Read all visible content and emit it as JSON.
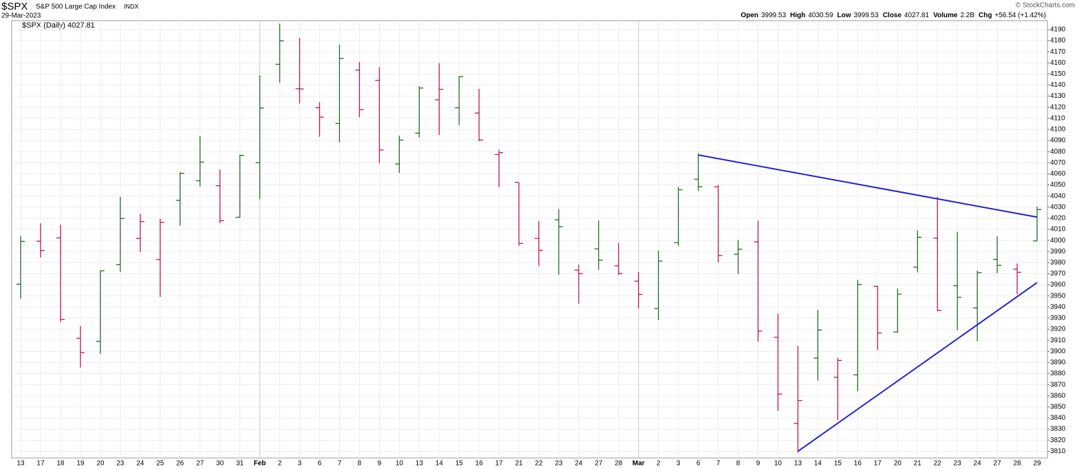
{
  "chart_data": {
    "type": "ohlc",
    "symbol": "$SPX",
    "name": "S&P 500 Large Cap Index",
    "exchange": "INDX",
    "date": "29-Mar-2023",
    "source": "© StockCharts.com",
    "legend": "$SPX (Daily) 4027.81",
    "header_stats": [
      {
        "label": "Open",
        "value": "3999.53"
      },
      {
        "label": "High",
        "value": "4030.59"
      },
      {
        "label": "Low",
        "value": "3999.53"
      },
      {
        "label": "Close",
        "value": "4027.81"
      },
      {
        "label": "Volume",
        "value": "2.2B"
      },
      {
        "label": "Chg",
        "value": "+56.54 (+1.42%)"
      }
    ],
    "categories": [
      "13",
      "17",
      "18",
      "19",
      "20",
      "23",
      "24",
      "25",
      "26",
      "27",
      "30",
      "31",
      "Feb",
      "2",
      "3",
      "6",
      "7",
      "8",
      "9",
      "10",
      "13",
      "14",
      "15",
      "16",
      "17",
      "21",
      "22",
      "23",
      "24",
      "27",
      "28",
      "Mar",
      "2",
      "3",
      "6",
      "7",
      "8",
      "9",
      "10",
      "13",
      "14",
      "15",
      "16",
      "17",
      "20",
      "21",
      "22",
      "23",
      "24",
      "27",
      "28",
      "29"
    ],
    "open": [
      3960.6,
      3999.28,
      4002.25,
      3911.84,
      3909.04,
      3978.14,
      4001.74,
      3982.71,
      4036.08,
      4053.72,
      4049.27,
      4020.85,
      4070.07,
      4158.68,
      4136.69,
      4119.57,
      4105.35,
      4153.47,
      4144.25,
      4068.92,
      4096.62,
      4126.7,
      4119.5,
      4114.75,
      4077.39,
      4052.35,
      4001.83,
      4018.6,
      3973.24,
      3992.36,
      3977.19,
      3963.34,
      3938.68,
      3998.02,
      4055.15,
      4048.26,
      3987.55,
      3998.66,
      3912.77,
      3835.12,
      3894.01,
      3876.74,
      3878.93,
      3958.69,
      3917.47,
      3975.89,
      4002.04,
      3959.21,
      3939.21,
      3982.93,
      3974.13,
      3999.53
    ],
    "high": [
      4003.95,
      4015.39,
      4014.16,
      3922.94,
      3972.96,
      4039.31,
      4023.92,
      4019.55,
      4061.57,
      4094.21,
      4063.85,
      4077.16,
      4148.95,
      4195.44,
      4182.36,
      4124.63,
      4176.54,
      4160.77,
      4156.23,
      4094.36,
      4138.9,
      4159.77,
      4148.11,
      4136.54,
      4081.51,
      4052.35,
      4017.37,
      4028.3,
      3978.25,
      4018.05,
      3997.5,
      3971.73,
      3990.84,
      4048.29,
      4078.49,
      4050,
      4000.41,
      4017.81,
      3934.05,
      3905.05,
      3937.29,
      3894.26,
      3964.46,
      3958.91,
      3956.62,
      4009.08,
      4039.49,
      4007.66,
      3972.74,
      4003.83,
      3979.2,
      4030.59
    ],
    "low": [
      3947.67,
      3984.57,
      3926.59,
      3885.54,
      3897.86,
      3971.64,
      3989.79,
      3949.06,
      4013.29,
      4048.7,
      4015.55,
      4020.44,
      4037.2,
      4141.88,
      4123.36,
      4093.38,
      4088.39,
      4111.01,
      4069.67,
      4060.79,
      4092.67,
      4095.01,
      4103.98,
      4089.49,
      4047.95,
      3995.19,
      3976.9,
      3969.19,
      3943.08,
      3973.55,
      3968.98,
      3939.05,
      3928.16,
      3995.17,
      4044.61,
      3980.31,
      3969.76,
      3908.7,
      3846.32,
      3808.86,
      3873.63,
      3838.24,
      3864.11,
      3901.27,
      3916.89,
      3971.19,
      3936.17,
      3919.05,
      3909.16,
      3970.47,
      3951.53,
      3999.53
    ],
    "close": [
      3999.09,
      3990.97,
      3928.86,
      3898.85,
      3972.61,
      4019.81,
      4016.95,
      4016.22,
      4060.43,
      4070.56,
      4017.77,
      4076.6,
      4119.21,
      4179.76,
      4136.48,
      4111.08,
      4164,
      4117.86,
      4081.5,
      4090.46,
      4137.29,
      4136.13,
      4147.6,
      4090.41,
      4079.09,
      3997.34,
      3991.05,
      4012.32,
      3970.04,
      3982.24,
      3970.15,
      3951.39,
      3981.35,
      4045.64,
      4048.42,
      3986.37,
      3992.01,
      3918.32,
      3861.59,
      3855.76,
      3919.29,
      3891.93,
      3960.28,
      3916.64,
      3951.57,
      4002.87,
      3936.97,
      3948.72,
      3970.99,
      3977.53,
      3971.27,
      4027.81
    ],
    "up_color": "#1f6b1f",
    "down_color": "#c0134e",
    "trendline_color": "#1f1fdc",
    "trendlines": [
      {
        "from": [
          34,
          4077
        ],
        "to": [
          51,
          4021
        ]
      },
      {
        "from": [
          39,
          3810
        ],
        "to": [
          51,
          3962
        ]
      }
    ],
    "ylim": [
      3804,
      4198
    ],
    "yticks": [
      3810,
      3820,
      3830,
      3840,
      3850,
      3860,
      3870,
      3880,
      3890,
      3900,
      3910,
      3920,
      3930,
      3940,
      3950,
      3960,
      3970,
      3980,
      3990,
      4000,
      4010,
      4020,
      4030,
      4040,
      4050,
      4060,
      4070,
      4080,
      4090,
      4100,
      4110,
      4120,
      4130,
      4140,
      4150,
      4160,
      4170,
      4180,
      4190
    ],
    "grid": true
  }
}
